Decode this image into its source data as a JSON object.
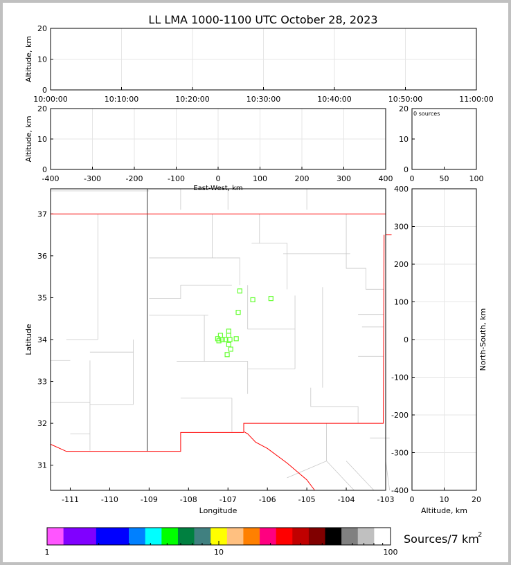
{
  "title": "LL LMA 1000-1100 UTC October 28, 2023",
  "chart_data": [
    {
      "panel": "time-altitude",
      "type": "scatter",
      "ylabel": "Altitude, km",
      "xlabel": "",
      "xticks": [
        "10:00:00",
        "10:10:00",
        "10:20:00",
        "10:30:00",
        "10:40:00",
        "10:50:00",
        "11:00:00"
      ],
      "yticks": [
        0,
        10,
        20
      ],
      "xlim": [
        "10:00:00",
        "11:00:00"
      ],
      "ylim": [
        0,
        20
      ],
      "grid": true,
      "points": []
    },
    {
      "panel": "east-west-altitude",
      "type": "scatter",
      "ylabel": "Altitude, km",
      "xlabel": "East-West, km",
      "xticks": [
        -400,
        -300,
        -200,
        -100,
        0,
        100,
        200,
        300,
        400
      ],
      "yticks": [
        0,
        10,
        20
      ],
      "xlim": [
        -400,
        400
      ],
      "ylim": [
        0,
        20
      ],
      "grid": true,
      "points": []
    },
    {
      "panel": "altitude-histogram",
      "type": "bar",
      "annotation": "0 sources",
      "xticks": [
        0,
        50,
        100
      ],
      "yticks": [
        0,
        10,
        20
      ],
      "xlim": [
        0,
        100
      ],
      "ylim": [
        0,
        20
      ]
    },
    {
      "panel": "plan-view",
      "type": "scatter",
      "xlabel": "Longitude",
      "ylabel": "Latitude",
      "xticks": [
        -111,
        -110,
        -109,
        -108,
        -107,
        -106,
        -105,
        -104,
        -103
      ],
      "yticks": [
        31,
        32,
        33,
        34,
        35,
        36,
        37
      ],
      "xlim": [
        -111.5,
        -103
      ],
      "ylim": [
        30.4,
        37.6
      ],
      "marker": "open-square",
      "marker_color": "#66ff33",
      "points": [
        [
          -106.7,
          35.16
        ],
        [
          -106.37,
          34.95
        ],
        [
          -105.91,
          34.98
        ],
        [
          -106.74,
          34.65
        ],
        [
          -106.98,
          34.2
        ],
        [
          -106.98,
          34.1
        ],
        [
          -107.26,
          34.02
        ],
        [
          -107.19,
          34.1
        ],
        [
          -107.14,
          34.0
        ],
        [
          -107.07,
          34.0
        ],
        [
          -106.95,
          34.0
        ],
        [
          -106.79,
          34.02
        ],
        [
          -106.98,
          33.88
        ],
        [
          -106.93,
          33.77
        ],
        [
          -107.02,
          33.64
        ],
        [
          -107.23,
          33.97
        ]
      ]
    },
    {
      "panel": "north-south-altitude",
      "type": "scatter",
      "xlabel": "Altitude, km",
      "ylabel": "North-South, km",
      "xticks": [
        0,
        10,
        20
      ],
      "yticks": [
        -400,
        -300,
        -200,
        -100,
        0,
        100,
        200,
        300,
        400
      ],
      "xlim": [
        0,
        20
      ],
      "ylim": [
        -400,
        400
      ],
      "grid": true,
      "points": []
    }
  ],
  "colorbar": {
    "label": "Sources/7 km",
    "label_sup": "2",
    "scale": "log",
    "ticks": [
      "1",
      "10",
      "100"
    ],
    "colors": [
      "#ff55ff",
      "#8000ff",
      "#0000ff",
      "#0080ff",
      "#00ffff",
      "#00ff00",
      "#008040",
      "#408080",
      "#ffff00",
      "#ffc080",
      "#ff8000",
      "#ff0080",
      "#ff0000",
      "#c00000",
      "#800000",
      "#000000",
      "#808080",
      "#c0c0c0",
      "#ffffff"
    ]
  },
  "colors": {
    "state_border": "#c8c8c8",
    "nm_border": "#ff0000",
    "az_border": "#000000"
  }
}
